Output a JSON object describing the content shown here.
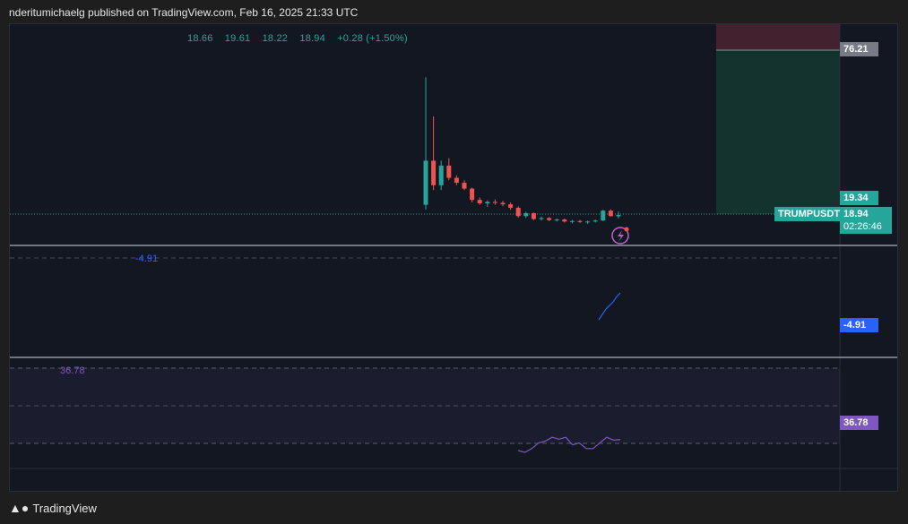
{
  "header": {
    "text": "nderitumichaelg published on TradingView.com, Feb 16, 2025 21:33 UTC"
  },
  "ohlc": {
    "open": "18.66",
    "high": "19.61",
    "low": "18.22",
    "close": "18.94",
    "change": "+0.28 (+1.50%)"
  },
  "price_axis": {
    "target_label": "76.21",
    "high_label": "19.34",
    "symbol": "TRUMPUSDT",
    "last_price": "18.94",
    "countdown": "02:26:46"
  },
  "indicators": {
    "ind1_value_label": "-4.91",
    "ind1_axis_label": "-4.91",
    "ind2_value_label": "36.78",
    "ind2_axis_label": "36.78"
  },
  "footer": {
    "brand": "TradingView"
  },
  "colors": {
    "up": "#26a69a",
    "down": "#ef5350",
    "ind1": "#2962ff",
    "ind2": "#7e57c2",
    "background": "#131722"
  },
  "chart_data": {
    "type": "candlestick",
    "panes": [
      "price",
      "indicator-1",
      "indicator-2"
    ],
    "candles": [
      {
        "o": 21.0,
        "h": 47.0,
        "l": 20.0,
        "c": 30.0
      },
      {
        "o": 30.0,
        "h": 39.0,
        "l": 24.0,
        "c": 25.0
      },
      {
        "o": 25.0,
        "h": 30.0,
        "l": 24.0,
        "c": 29.0
      },
      {
        "o": 29.0,
        "h": 30.5,
        "l": 26.0,
        "c": 26.5
      },
      {
        "o": 26.5,
        "h": 27.0,
        "l": 25.0,
        "c": 25.5
      },
      {
        "o": 25.5,
        "h": 26.0,
        "l": 24.0,
        "c": 24.3
      },
      {
        "o": 24.3,
        "h": 24.5,
        "l": 21.5,
        "c": 22.0
      },
      {
        "o": 22.0,
        "h": 22.5,
        "l": 21.0,
        "c": 21.3
      },
      {
        "o": 21.3,
        "h": 21.9,
        "l": 20.6,
        "c": 21.6
      },
      {
        "o": 21.6,
        "h": 22.1,
        "l": 21.0,
        "c": 21.4
      },
      {
        "o": 21.4,
        "h": 21.8,
        "l": 20.7,
        "c": 21.1
      },
      {
        "o": 21.1,
        "h": 21.5,
        "l": 20.0,
        "c": 20.4
      },
      {
        "o": 20.4,
        "h": 20.7,
        "l": 18.4,
        "c": 18.7
      },
      {
        "o": 18.7,
        "h": 19.6,
        "l": 18.3,
        "c": 19.3
      },
      {
        "o": 19.3,
        "h": 19.4,
        "l": 17.9,
        "c": 18.1
      },
      {
        "o": 18.1,
        "h": 18.6,
        "l": 17.8,
        "c": 18.3
      },
      {
        "o": 18.3,
        "h": 18.5,
        "l": 17.7,
        "c": 17.9
      },
      {
        "o": 17.9,
        "h": 18.2,
        "l": 17.6,
        "c": 18.0
      },
      {
        "o": 18.0,
        "h": 18.2,
        "l": 17.4,
        "c": 17.6
      },
      {
        "o": 17.6,
        "h": 17.9,
        "l": 17.2,
        "c": 17.7
      },
      {
        "o": 17.7,
        "h": 17.9,
        "l": 17.3,
        "c": 17.5
      },
      {
        "o": 17.5,
        "h": 17.8,
        "l": 17.1,
        "c": 17.6
      },
      {
        "o": 17.6,
        "h": 18.0,
        "l": 17.4,
        "c": 17.8
      },
      {
        "o": 17.8,
        "h": 20.0,
        "l": 17.7,
        "c": 19.8
      },
      {
        "o": 19.8,
        "h": 20.1,
        "l": 18.6,
        "c": 18.7
      },
      {
        "o": 18.66,
        "h": 19.61,
        "l": 18.22,
        "c": 18.94
      }
    ],
    "price_ylim": [
      14,
      56
    ],
    "position_box": {
      "target": 76.21,
      "entry": 18.94,
      "stop": 90
    },
    "ind1": {
      "values": [
        -20,
        -17,
        -14,
        -12,
        -10,
        -7,
        -4.91
      ]
    },
    "ind2": {
      "values": [
        31,
        30,
        32,
        35,
        36,
        38,
        37,
        38,
        34,
        35,
        32,
        32,
        35,
        38,
        36.5,
        36.78
      ],
      "ylim": [
        20,
        80
      ],
      "bands": [
        30,
        70
      ]
    }
  }
}
